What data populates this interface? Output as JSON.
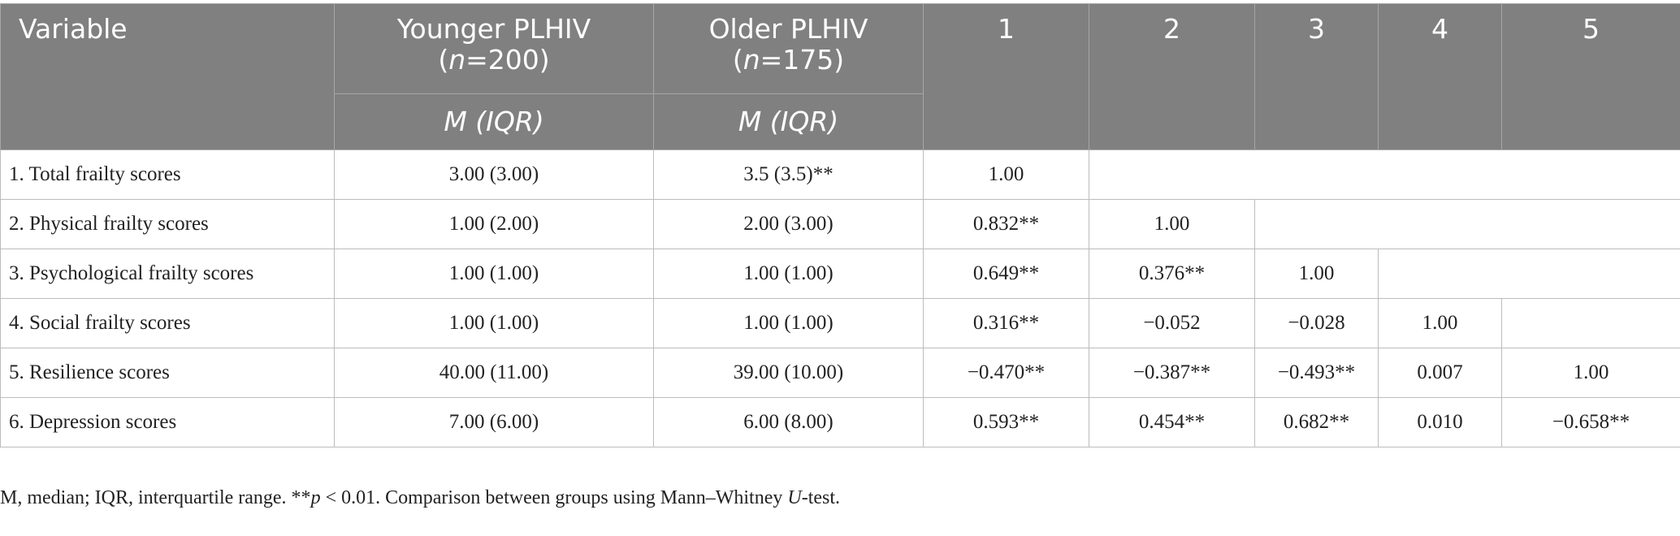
{
  "header": {
    "variable": "Variable",
    "younger": "Younger PLHIV",
    "younger_n_prefix": "(",
    "younger_n_italic": "n",
    "younger_n_suffix": "=200)",
    "older": "Older PLHIV",
    "older_n_prefix": "(",
    "older_n_italic": "n",
    "older_n_suffix": "=175)",
    "stat_m": "M",
    "stat_iqr": "IQR",
    "cols": [
      "1",
      "2",
      "3",
      "4",
      "5"
    ]
  },
  "rows": [
    {
      "label": "1. Total frailty scores",
      "younger": "3.00 (3.00)",
      "older": "3.5 (3.5)**",
      "c1": "1.00"
    },
    {
      "label": "2. Physical frailty scores",
      "younger": "1.00 (2.00)",
      "older": "2.00 (3.00)",
      "c1": "0.832**",
      "c2": "1.00"
    },
    {
      "label": "3. Psychological frailty scores",
      "younger": "1.00 (1.00)",
      "older": "1.00 (1.00)",
      "c1": "0.649**",
      "c2": "0.376**",
      "c3": "1.00"
    },
    {
      "label": "4. Social frailty scores",
      "younger": "1.00 (1.00)",
      "older": "1.00 (1.00)",
      "c1": "0.316**",
      "c2": "−0.052",
      "c3": "−0.028",
      "c4": "1.00"
    },
    {
      "label": "5. Resilience scores",
      "younger": "40.00 (11.00)",
      "older": "39.00 (10.00)",
      "c1": "−0.470**",
      "c2": "−0.387**",
      "c3": "−0.493**",
      "c4": "0.007",
      "c5": "1.00"
    },
    {
      "label": "6. Depression scores",
      "younger": "7.00 (6.00)",
      "older": "6.00 (8.00)",
      "c1": "0.593**",
      "c2": "0.454**",
      "c3": "0.682**",
      "c4": "0.010",
      "c5": "−0.658**"
    }
  ],
  "footnote": {
    "part1": "M, median; IQR, interquartile range. **",
    "p": "p",
    "part2": " < 0.01. Comparison between groups using Mann–Whitney ",
    "u": "U",
    "part3": "-test."
  },
  "colors": {
    "header_bg": "#808080",
    "header_text": "#ffffff",
    "border": "#bcbcbc"
  }
}
